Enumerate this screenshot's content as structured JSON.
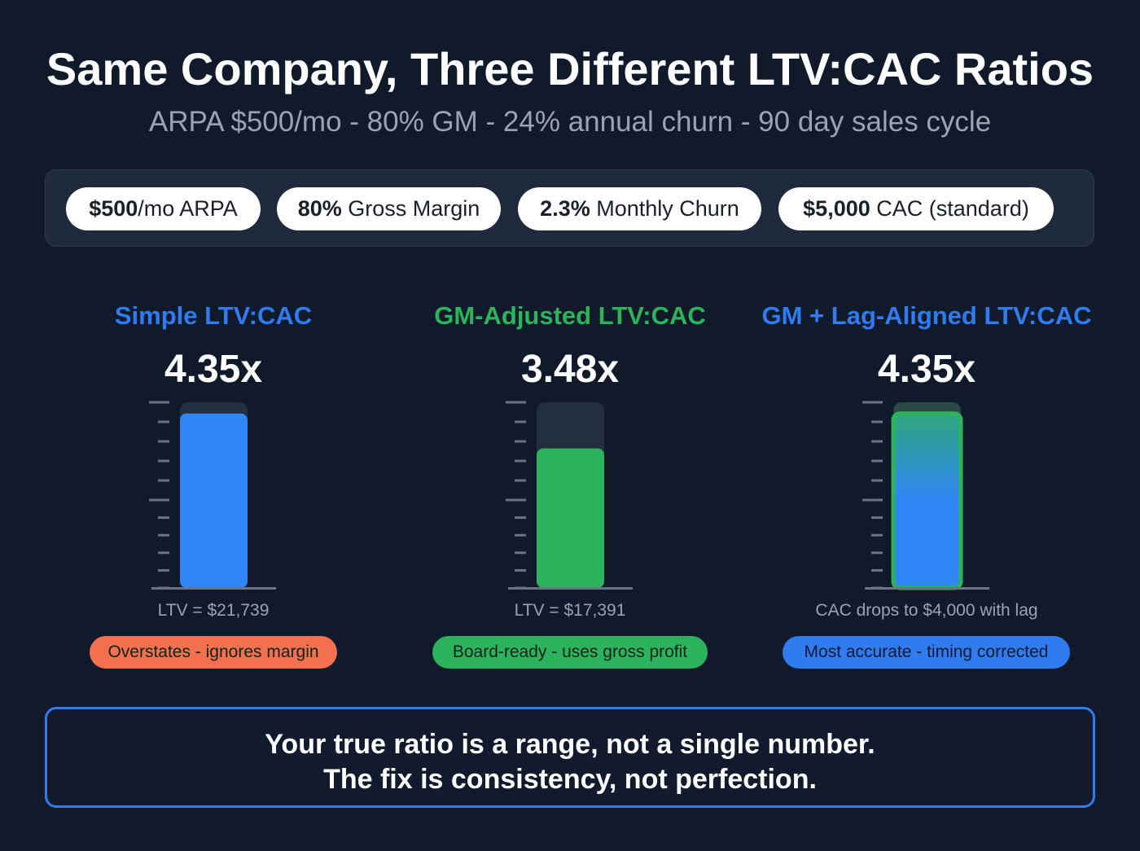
{
  "title": "Same Company, Three Different LTV:CAC Ratios",
  "subtitle": "ARPA $500/mo - 80% GM - 24% annual churn - 90 day sales cycle",
  "pills": [
    {
      "bold": "$500",
      "rest": "/mo ARPA"
    },
    {
      "bold": "80%",
      "rest": " Gross Margin"
    },
    {
      "bold": "2.3%",
      "rest": " Monthly Churn"
    },
    {
      "bold": "$5,000",
      "rest": " CAC (standard)"
    }
  ],
  "chart_data": [
    {
      "type": "bar",
      "title": "Simple LTV:CAC",
      "value": 4.35,
      "value_label": "4.35x",
      "note": "LTV = $21,739",
      "tag": "Overstates - ignores margin",
      "title_color": "#2f7bf0",
      "bar_color": "#2f86f5",
      "tag_color": "#f4704f"
    },
    {
      "type": "bar",
      "title": "GM-Adjusted LTV:CAC",
      "value": 3.48,
      "value_label": "3.48x",
      "note": "LTV = $17,391",
      "tag": "Board-ready - uses gross profit",
      "title_color": "#2db35a",
      "bar_color": "#2bb35e",
      "tag_color": "#2bb35e"
    },
    {
      "type": "bar",
      "title": "GM + Lag-Aligned LTV:CAC",
      "value": 4.35,
      "value_label": "4.35x",
      "note": "CAC drops to $4,000 with lag",
      "tag": "Most accurate - timing corrected",
      "title_color": "#2f7bf0",
      "bar_color": "gradient green-to-blue",
      "tag_color": "#2f7bf0"
    }
  ],
  "callout": {
    "line1": "Your true ratio is a range, not a single number.",
    "line2": "The fix is consistency, not perfection."
  }
}
